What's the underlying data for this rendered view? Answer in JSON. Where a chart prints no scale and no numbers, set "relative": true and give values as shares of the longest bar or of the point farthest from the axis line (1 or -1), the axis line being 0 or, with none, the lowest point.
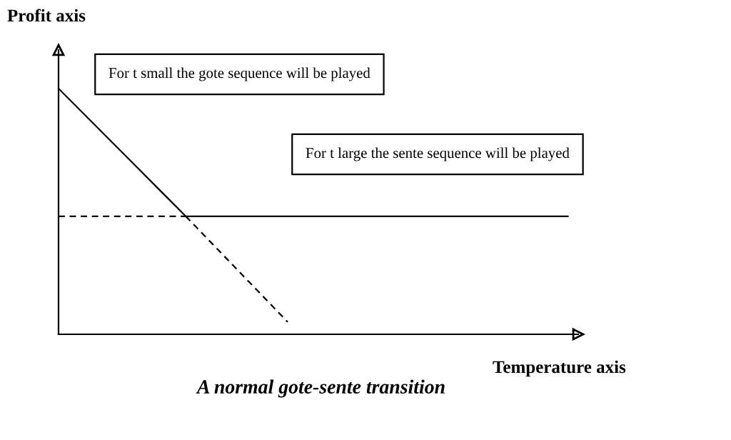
{
  "chart_data": {
    "type": "line",
    "relative": true,
    "title": "A normal gote-sente transition",
    "xlabel": "Temperature axis",
    "ylabel": "Profit axis",
    "annotations": [
      "For t small the gote sequence will be played",
      "For t large the sente sequence will be played"
    ],
    "categories": [
      null,
      null,
      null,
      null,
      null,
      null,
      null,
      null,
      null,
      null,
      null,
      null,
      null,
      null,
      null,
      null,
      null,
      null,
      null,
      null,
      null
    ],
    "tick_labels": false,
    "marker": "none",
    "series": [
      {
        "color": "#000000",
        "line_style": "solid",
        "values": [
          1,
          0.896,
          0.792,
          0.688,
          0.584,
          0.48,
          null,
          null,
          null,
          null,
          null,
          null,
          null,
          null,
          null,
          null,
          null,
          null,
          null,
          null,
          null
        ]
      },
      {
        "color": "#000000",
        "line_style": "dashed",
        "values": [
          null,
          null,
          null,
          null,
          null,
          0.48,
          0.3725,
          0.265,
          0.1575,
          0.05,
          null,
          null,
          null,
          null,
          null,
          null,
          null,
          null,
          null,
          null,
          null
        ]
      },
      {
        "color": "#000000",
        "line_style": "dashed",
        "values": [
          0.48,
          0.48,
          0.48,
          0.48,
          0.48,
          0.48,
          null,
          null,
          null,
          null,
          null,
          null,
          null,
          null,
          null,
          null,
          null,
          null,
          null,
          null,
          null
        ]
      },
      {
        "color": "#000000",
        "line_style": "solid",
        "values": [
          null,
          null,
          null,
          null,
          null,
          0.48,
          0.48,
          0.48,
          0.48,
          0.48,
          0.48,
          0.48,
          0.48,
          0.48,
          0.48,
          0.48,
          0.48,
          0.48,
          0.48,
          0.48,
          0.48
        ]
      }
    ]
  }
}
